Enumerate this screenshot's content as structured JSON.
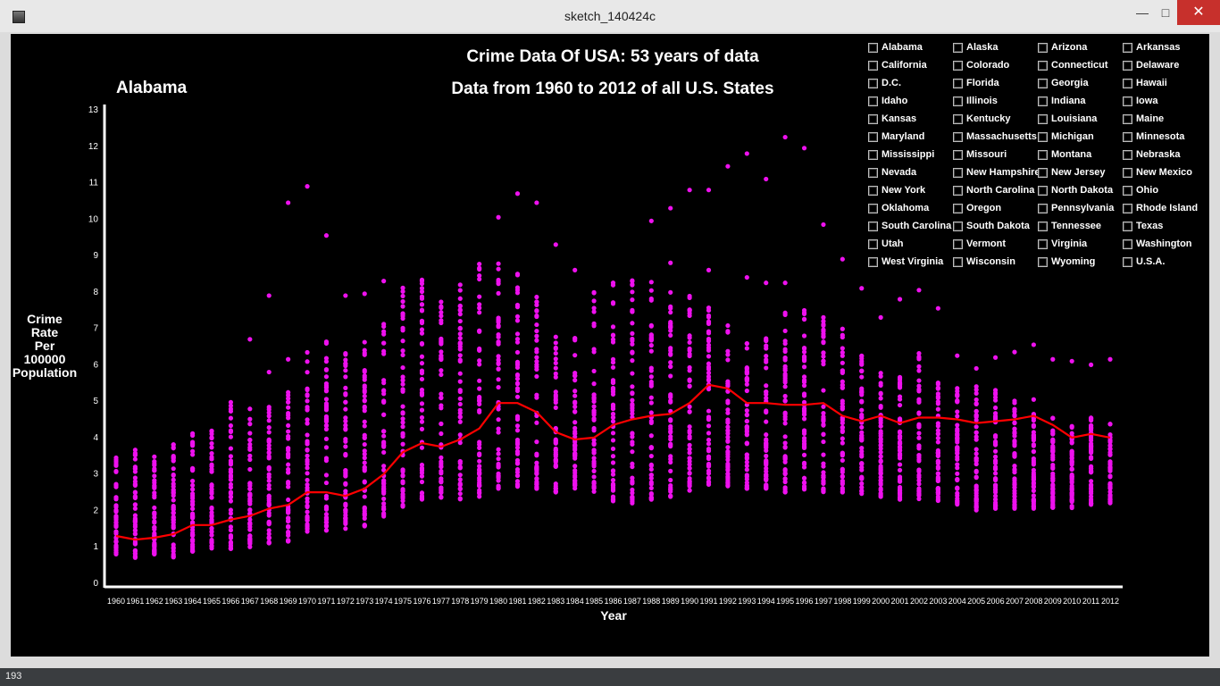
{
  "window": {
    "title": "sketch_140424c"
  },
  "status": {
    "text": "193"
  },
  "colors": {
    "points": "#ee11ee",
    "line": "#ff0000",
    "axis": "#ffffff",
    "background": "#000000"
  },
  "selected_state": "Alabama",
  "states": [
    "Alabama",
    "Alaska",
    "Arizona",
    "Arkansas",
    "California",
    "Colorado",
    "Connecticut",
    "Delaware",
    "D.C.",
    "Florida",
    "Georgia",
    "Hawaii",
    "Idaho",
    "Illinois",
    "Indiana",
    "Iowa",
    "Kansas",
    "Kentucky",
    "Louisiana",
    "Maine",
    "Maryland",
    "Massachusetts",
    "Michigan",
    "Minnesota",
    "Mississippi",
    "Missouri",
    "Montana",
    "Nebraska",
    "Nevada",
    "New Hampshire",
    "New Jersey",
    "New Mexico",
    "New York",
    "North Carolina",
    "North Dakota",
    "Ohio",
    "Oklahoma",
    "Oregon",
    "Pennsylvania",
    "Rhode Island",
    "South Carolina",
    "South Dakota",
    "Tennessee",
    "Texas",
    "Utah",
    "Vermont",
    "Virginia",
    "Washington",
    "West Virginia",
    "Wisconsin",
    "Wyoming",
    "U.S.A."
  ],
  "chart_data": {
    "type": "scatter",
    "title": "Crime Data Of USA: 53 years of data",
    "subtitle": "Data from 1960 to 2012 of all U.S. States",
    "xlabel": "Year",
    "ylabel": "Crime\n Rate\nPer\n100000\nPopulation",
    "x": [
      1960,
      1961,
      1962,
      1963,
      1964,
      1965,
      1966,
      1967,
      1968,
      1969,
      1970,
      1971,
      1972,
      1973,
      1974,
      1975,
      1976,
      1977,
      1978,
      1979,
      1980,
      1981,
      1982,
      1983,
      1984,
      1985,
      1986,
      1987,
      1988,
      1989,
      1990,
      1991,
      1992,
      1993,
      1994,
      1995,
      1996,
      1997,
      1998,
      1999,
      2000,
      2001,
      2002,
      2003,
      2004,
      2005,
      2006,
      2007,
      2008,
      2009,
      2010,
      2011,
      2012
    ],
    "ylim": [
      0,
      13
    ],
    "yticks": [
      0,
      1,
      2,
      3,
      4,
      5,
      6,
      7,
      8,
      9,
      10,
      11,
      12,
      13
    ],
    "series": [
      {
        "name": "Alabama",
        "kind": "line",
        "values": [
          1.3,
          1.2,
          1.25,
          1.35,
          1.6,
          1.6,
          1.75,
          1.85,
          2.05,
          2.15,
          2.5,
          2.5,
          2.4,
          2.6,
          3.0,
          3.6,
          3.85,
          3.75,
          3.95,
          4.25,
          4.95,
          4.95,
          4.7,
          4.15,
          3.95,
          4.0,
          4.35,
          4.5,
          4.6,
          4.65,
          4.95,
          5.45,
          5.35,
          4.95,
          4.95,
          4.9,
          4.9,
          4.95,
          4.6,
          4.45,
          4.6,
          4.4,
          4.55,
          4.55,
          4.5,
          4.4,
          4.45,
          4.5,
          4.6,
          4.35,
          4.0,
          4.1,
          4.0
        ]
      },
      {
        "name": "state_min",
        "kind": "range_low",
        "values": [
          0.75,
          0.7,
          0.8,
          0.7,
          0.85,
          0.9,
          0.95,
          1.0,
          1.1,
          1.15,
          1.35,
          1.45,
          1.5,
          1.55,
          1.8,
          2.1,
          2.3,
          2.35,
          2.3,
          2.35,
          2.6,
          2.65,
          2.6,
          2.5,
          2.45,
          2.3,
          2.25,
          2.2,
          2.25,
          2.35,
          2.55,
          2.7,
          2.65,
          2.6,
          2.6,
          2.5,
          2.55,
          2.5,
          2.5,
          2.45,
          2.35,
          2.3,
          2.3,
          2.25,
          2.15,
          2.0,
          2.05,
          2.05,
          2.05,
          2.05,
          2.05,
          2.1,
          2.2
        ]
      },
      {
        "name": "state_max",
        "kind": "range_high",
        "values": [
          3.5,
          3.7,
          3.75,
          3.85,
          4.3,
          4.35,
          5.0,
          5.1,
          4.95,
          5.25,
          6.4,
          6.75,
          6.5,
          6.8,
          7.2,
          8.4,
          8.4,
          8.05,
          8.35,
          8.9,
          8.9,
          8.65,
          7.95,
          6.85,
          6.8,
          8.05,
          8.3,
          8.55,
          8.5,
          8.0,
          7.95,
          7.85,
          7.15,
          6.9,
          6.75,
          7.5,
          7.6,
          7.35,
          7.0,
          6.25,
          5.9,
          5.75,
          6.45,
          5.6,
          5.6,
          5.45,
          5.35,
          5.2,
          5.05,
          4.65,
          4.4,
          4.6,
          4.45
        ]
      },
      {
        "name": "outliers",
        "kind": "points",
        "points": [
          [
            1967,
            6.7
          ],
          [
            1968,
            7.9
          ],
          [
            1968,
            5.8
          ],
          [
            1969,
            10.45
          ],
          [
            1969,
            6.15
          ],
          [
            1970,
            10.9
          ],
          [
            1971,
            9.55
          ],
          [
            1972,
            7.9
          ],
          [
            1973,
            7.95
          ],
          [
            1974,
            8.3
          ],
          [
            1980,
            10.05
          ],
          [
            1981,
            10.7
          ],
          [
            1982,
            10.45
          ],
          [
            1983,
            9.3
          ],
          [
            1984,
            8.6
          ],
          [
            1988,
            9.95
          ],
          [
            1989,
            10.3
          ],
          [
            1989,
            8.8
          ],
          [
            1990,
            10.8
          ],
          [
            1991,
            10.8
          ],
          [
            1991,
            8.6
          ],
          [
            1992,
            11.45
          ],
          [
            1993,
            11.8
          ],
          [
            1993,
            8.4
          ],
          [
            1994,
            11.1
          ],
          [
            1994,
            8.25
          ],
          [
            1995,
            12.25
          ],
          [
            1995,
            8.25
          ],
          [
            1996,
            11.95
          ],
          [
            1997,
            9.85
          ],
          [
            1998,
            8.9
          ],
          [
            1999,
            8.1
          ],
          [
            2000,
            7.3
          ],
          [
            2001,
            7.8
          ],
          [
            2002,
            8.05
          ],
          [
            2003,
            7.55
          ],
          [
            2004,
            6.25
          ],
          [
            2005,
            5.9
          ],
          [
            2006,
            6.2
          ],
          [
            2007,
            6.35
          ],
          [
            2008,
            6.55
          ],
          [
            2009,
            6.15
          ],
          [
            2010,
            6.1
          ],
          [
            2011,
            6.0
          ],
          [
            2012,
            6.15
          ]
        ]
      }
    ]
  }
}
